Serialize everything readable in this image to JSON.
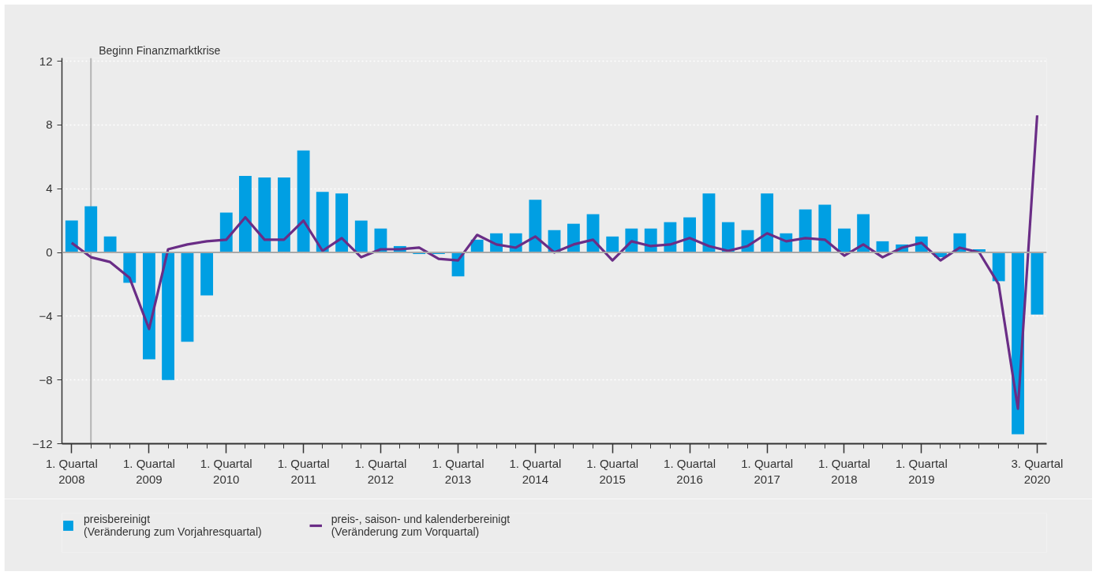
{
  "chart_data": {
    "type": "bar",
    "x": [
      "2008-01",
      "2008-04",
      "2008-07",
      "2008-10",
      "2009-01",
      "2009-04",
      "2009-07",
      "2009-10",
      "2010-01",
      "2010-04",
      "2010-07",
      "2010-10",
      "2011-01",
      "2011-04",
      "2011-07",
      "2011-10",
      "2012-01",
      "2012-04",
      "2012-07",
      "2012-10",
      "2013-01",
      "2013-04",
      "2013-07",
      "2013-10",
      "2014-01",
      "2014-04",
      "2014-07",
      "2014-10",
      "2015-01",
      "2015-04",
      "2015-07",
      "2015-10",
      "2016-01",
      "2016-04",
      "2016-07",
      "2016-10",
      "2017-01",
      "2017-04",
      "2017-07",
      "2017-10",
      "2018-01",
      "2018-04",
      "2018-07",
      "2018-10",
      "2019-01",
      "2019-04",
      "2019-07",
      "2019-10",
      "2020-01",
      "2020-04",
      "2020-07"
    ],
    "series": [
      {
        "name": "preisbereinigt\n(Veränderung zum Vorjahresquartal)",
        "color": "#009fe3",
        "values": [
          2.0,
          2.9,
          1.0,
          -1.9,
          -6.7,
          -8.0,
          -5.6,
          -2.7,
          2.5,
          4.8,
          4.7,
          4.7,
          6.4,
          3.8,
          3.7,
          2.0,
          1.5,
          0.4,
          -0.1,
          -0.1,
          -1.5,
          0.8,
          1.2,
          1.2,
          3.3,
          1.4,
          1.8,
          2.4,
          1.0,
          1.5,
          1.5,
          1.9,
          2.2,
          3.7,
          1.9,
          1.4,
          3.7,
          1.2,
          2.7,
          3.0,
          1.5,
          2.4,
          0.7,
          0.5,
          1.0,
          -0.3,
          1.2,
          0.2,
          -1.8,
          -11.4,
          -3.9
        ]
      },
      {
        "name": "preis-, saison- und kalenderbereinigt\n(Veränderung zum Vorquartal)",
        "type": "line",
        "color": "#6a2d86",
        "values": [
          0.6,
          -0.3,
          -0.6,
          -1.6,
          -4.8,
          0.2,
          0.5,
          0.7,
          0.8,
          2.2,
          0.8,
          0.8,
          2.0,
          0.1,
          0.9,
          -0.3,
          0.2,
          0.2,
          0.3,
          -0.4,
          -0.5,
          1.1,
          0.5,
          0.3,
          1.0,
          0.0,
          0.5,
          0.8,
          -0.5,
          0.7,
          0.4,
          0.5,
          0.9,
          0.4,
          0.1,
          0.4,
          1.2,
          0.7,
          0.9,
          0.8,
          -0.2,
          0.5,
          -0.3,
          0.3,
          0.6,
          -0.5,
          0.3,
          0.0,
          -2.0,
          -9.8,
          8.6
        ]
      }
    ],
    "xlim": [
      "2007-11-16",
      "2020-08-15"
    ],
    "xticks": [
      {
        "value": "2008-01",
        "label": "1. Quartal\n2008"
      },
      {
        "value": "2008-04",
        "label": null
      },
      {
        "value": "2008-07",
        "label": null
      },
      {
        "value": "2008-10",
        "label": null
      },
      {
        "value": "2009-01",
        "label": "1. Quartal\n2009"
      },
      {
        "value": "2009-04",
        "label": null
      },
      {
        "value": "2009-07",
        "label": null
      },
      {
        "value": "2009-10",
        "label": null
      },
      {
        "value": "2010-01",
        "label": "1. Quartal\n2010"
      },
      {
        "value": "2010-04",
        "label": null
      },
      {
        "value": "2010-07",
        "label": null
      },
      {
        "value": "2010-10",
        "label": null
      },
      {
        "value": "2011-01",
        "label": "1. Quartal\n2011"
      },
      {
        "value": "2011-04",
        "label": null
      },
      {
        "value": "2011-07",
        "label": null
      },
      {
        "value": "2011-10",
        "label": null
      },
      {
        "value": "2012-01",
        "label": "1. Quartal\n2012"
      },
      {
        "value": "2012-04",
        "label": null
      },
      {
        "value": "2012-07",
        "label": null
      },
      {
        "value": "2012-10",
        "label": null
      },
      {
        "value": "2013-01",
        "label": "1. Quartal\n2013"
      },
      {
        "value": "2013-04",
        "label": null
      },
      {
        "value": "2013-07",
        "label": null
      },
      {
        "value": "2013-10",
        "label": null
      },
      {
        "value": "2014-01",
        "label": "1. Quartal\n2014"
      },
      {
        "value": "2014-04",
        "label": null
      },
      {
        "value": "2014-07",
        "label": null
      },
      {
        "value": "2014-10",
        "label": null
      },
      {
        "value": "2015-01",
        "label": "1. Quartal\n2015"
      },
      {
        "value": "2015-04",
        "label": null
      },
      {
        "value": "2015-07",
        "label": null
      },
      {
        "value": "2015-10",
        "label": null
      },
      {
        "value": "2016-01",
        "label": "1. Quartal\n2016"
      },
      {
        "value": "2016-04",
        "label": null
      },
      {
        "value": "2016-07",
        "label": null
      },
      {
        "value": "2016-10",
        "label": null
      },
      {
        "value": "2017-01",
        "label": "1. Quartal\n2017"
      },
      {
        "value": "2017-04",
        "label": null
      },
      {
        "value": "2017-07",
        "label": null
      },
      {
        "value": "2017-10",
        "label": null
      },
      {
        "value": "2018-01",
        "label": "1. Quartal\n2018"
      },
      {
        "value": "2018-04",
        "label": null
      },
      {
        "value": "2018-07",
        "label": null
      },
      {
        "value": "2018-10",
        "label": null
      },
      {
        "value": "2019-01",
        "label": "1. Quartal\n2019"
      },
      {
        "value": "2019-04",
        "label": null
      },
      {
        "value": "2019-07",
        "label": null
      },
      {
        "value": "2019-10",
        "label": null
      },
      {
        "value": "2020-01",
        "label": null
      },
      {
        "value": "2020-04",
        "label": null
      },
      {
        "value": "2020-07",
        "label": "3. Quartal\n2020"
      }
    ],
    "ylim": [
      -12,
      12.2
    ],
    "yticks": [
      12,
      8,
      4,
      0,
      {
        "value": -4,
        "label": "−4"
      },
      {
        "value": -8,
        "label": "−8"
      },
      {
        "value": -12,
        "label": "−12"
      }
    ],
    "grid": "y",
    "legend": "bottom",
    "ref_lines": [
      {
        "axis": "x",
        "value": "2008-04",
        "label": "Beginn Finanzmarktkrise",
        "color": "#b4b4b4"
      },
      {
        "axis": "y",
        "value": 0,
        "color": "#a8a8a8"
      }
    ]
  }
}
